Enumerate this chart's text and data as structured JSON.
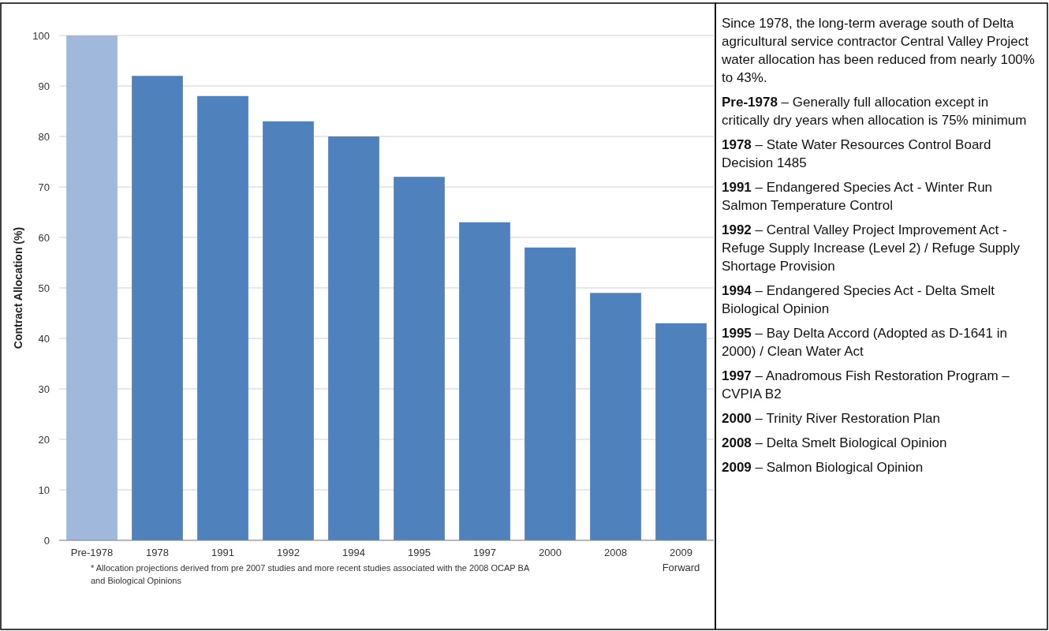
{
  "chart_data": {
    "type": "bar",
    "ylabel": "Contract Allocation (%)",
    "categories": [
      "Pre-1978",
      "1978",
      "1991",
      "1992",
      "1994",
      "1995",
      "1997",
      "2000",
      "2008",
      "2009 Forward"
    ],
    "values": [
      100,
      92,
      88,
      83,
      80,
      72,
      63,
      58,
      49,
      43
    ],
    "colors": [
      "#9fb8dc",
      "#4f81bd",
      "#4f81bd",
      "#4f81bd",
      "#4f81bd",
      "#4f81bd",
      "#4f81bd",
      "#4f81bd",
      "#4f81bd",
      "#4f81bd"
    ],
    "ylim": [
      0,
      100
    ],
    "yticks": [
      0,
      10,
      20,
      30,
      40,
      50,
      60,
      70,
      80,
      90,
      100
    ],
    "grid": "y",
    "annotations": [
      "* Allocation projections derived from  pre 2007 studies and more recent studies associated with the 2008 OCAP BA and Biological Opinions",
      "Since 1978, the long-term average south of Delta agricultural service contractor Central Valley Project water allocation has been reduced from nearly 100% to 43%.",
      "Pre-1978 – Generally full allocation except in critically dry years when allocation is 75% minimum",
      "1978 – State Water Resources Control Board Decision 1485",
      "1991 – Endangered Species Act - Winter Run Salmon Temperature Control",
      "1992 – Central Valley Project Improvement Act - Refuge Supply Increase (Level 2) / Refuge Supply Shortage Provision",
      "1994 – Endangered Species Act - Delta Smelt Biological Opinion",
      "1995 – Bay Delta Accord (Adopted as D-1641 in 2000) / Clean Water Act",
      "1997 – Anadromous Fish Restoration Program – CVPIA B2",
      "2000 – Trinity River Restoration Plan",
      "2008 – Delta Smelt Biological Opinion",
      "2009 – Salmon Biological Opinion"
    ]
  }
}
